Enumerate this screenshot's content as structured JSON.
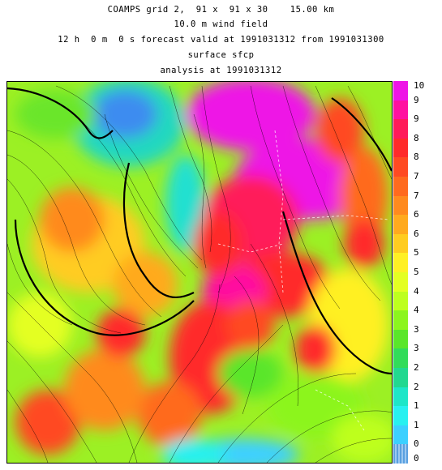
{
  "header": {
    "line1": "COAMPS grid 2,  91 x  91 x 30    15.00 km",
    "line2": "10.0 m wind field",
    "line3": "12 h  0 m  0 s forecast valid at 1991031312 from 1991031300",
    "line4": "surface sfcp",
    "line5": "analysis at 1991031312"
  },
  "legend": {
    "labels": [
      "10",
      "9",
      "9",
      "8",
      "8",
      "7",
      "7",
      "6",
      "6",
      "5",
      "5",
      "4",
      "4",
      "3",
      "3",
      "2",
      "2",
      "1",
      "1",
      "0",
      "0"
    ],
    "colors": [
      "#ee14e6",
      "#ff10a0",
      "#ff1a5a",
      "#ff2a2a",
      "#ff4a22",
      "#ff6a1e",
      "#ff8a1e",
      "#ffaa1e",
      "#ffcc20",
      "#fff024",
      "#e4ff22",
      "#beff1e",
      "#8cf51e",
      "#5ae62a",
      "#32dc5a",
      "#22d890",
      "#1ee6c8",
      "#28f0f0",
      "#3cd0ff",
      "#7ab4f0"
    ]
  }
}
